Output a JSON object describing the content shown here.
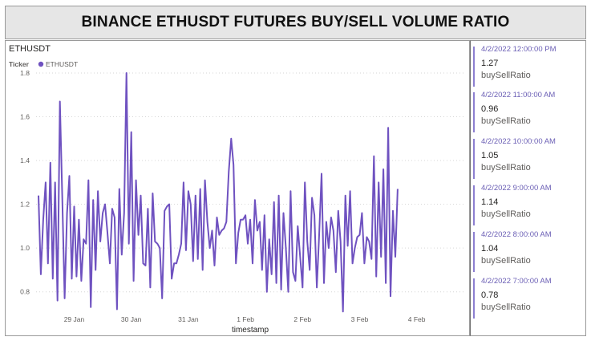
{
  "title": "BINANCE ETHUSDT FUTURES BUY/SELL VOLUME RATIO",
  "colors": {
    "series": "#6f52c0",
    "grid": "#d6d6d6",
    "card_accent": "#8c7fd0"
  },
  "chart_data": {
    "type": "line",
    "title": "ETHUSDT",
    "legend": {
      "title": "Ticker",
      "position": "top-left",
      "entries": [
        "ETHUSDT"
      ]
    },
    "xlabel": "timestamp",
    "ylabel": "",
    "xlim": [
      "2022-01-28 08:00",
      "2022-02-04 20:00"
    ],
    "ylim": [
      0.7,
      1.8
    ],
    "yticks": [
      "0.8",
      "1.0",
      "1.2",
      "1.4",
      "1.6",
      "1.8"
    ],
    "yticks_values": [
      0.8,
      1.0,
      1.2,
      1.4,
      1.6,
      1.8
    ],
    "xticks": [
      "29 Jan",
      "30 Jan",
      "31 Jan",
      "1 Feb",
      "2 Feb",
      "3 Feb",
      "4 Feb"
    ],
    "xticks_dates": [
      "2022-01-29",
      "2022-01-30",
      "2022-01-31",
      "2022-02-01",
      "2022-02-02",
      "2022-02-03",
      "2022-02-04"
    ],
    "grid": true,
    "series": [
      {
        "name": "ETHUSDT",
        "x_start": "2022-01-28 09:00",
        "interval_hours": 1,
        "values": [
          1.24,
          0.88,
          1.13,
          1.3,
          0.93,
          1.39,
          0.86,
          1.3,
          0.76,
          1.67,
          1.24,
          0.77,
          1.16,
          1.33,
          0.86,
          1.19,
          0.87,
          1.13,
          0.85,
          1.04,
          1.02,
          1.31,
          0.73,
          1.22,
          0.9,
          1.26,
          1.03,
          1.16,
          1.2,
          1.07,
          0.93,
          1.18,
          1.14,
          0.72,
          1.27,
          0.97,
          1.16,
          1.8,
          1.02,
          1.53,
          0.85,
          1.31,
          1.06,
          1.24,
          0.93,
          0.92,
          1.18,
          0.82,
          1.25,
          1.03,
          1.02,
          1.0,
          0.77,
          1.17,
          1.19,
          1.2,
          0.86,
          0.93,
          0.93,
          0.97,
          1.02,
          1.3,
          0.99,
          1.26,
          1.2,
          0.94,
          1.24,
          0.95,
          1.27,
          0.9,
          1.31,
          1.12,
          1.0,
          1.08,
          0.92,
          1.14,
          1.06,
          1.08,
          1.09,
          1.12,
          1.35,
          1.5,
          1.38,
          0.93,
          1.07,
          1.13,
          1.13,
          1.15,
          1.02,
          1.13,
          0.93,
          1.22,
          1.08,
          1.12,
          0.9,
          1.15,
          0.8,
          1.04,
          0.88,
          1.21,
          0.84,
          1.24,
          0.81,
          1.16,
          1.0,
          0.8,
          1.26,
          0.89,
          0.85,
          1.1,
          0.96,
          0.82,
          1.3,
          1.03,
          0.9,
          1.23,
          1.15,
          0.82,
          1.06,
          1.34,
          0.84,
          1.12,
          1.0,
          1.14,
          1.08,
          0.89,
          1.17,
          1.03,
          0.71,
          1.24,
          1.01,
          1.26,
          0.93,
          1.0,
          1.05,
          1.06,
          1.16,
          0.93,
          1.05,
          1.03,
          0.95,
          1.42,
          0.87,
          1.3,
          0.96,
          1.36,
          0.84,
          1.55,
          0.78,
          1.17,
          0.96,
          1.27
        ]
      }
    ]
  },
  "cards": [
    {
      "timestamp": "4/2/2022 12:00:00 PM",
      "value": "1.27",
      "metric": "buySellRatio"
    },
    {
      "timestamp": "4/2/2022 11:00:00 AM",
      "value": "0.96",
      "metric": "buySellRatio"
    },
    {
      "timestamp": "4/2/2022 10:00:00 AM",
      "value": "1.05",
      "metric": "buySellRatio"
    },
    {
      "timestamp": "4/2/2022 9:00:00 AM",
      "value": "1.14",
      "metric": "buySellRatio"
    },
    {
      "timestamp": "4/2/2022 8:00:00 AM",
      "value": "1.04",
      "metric": "buySellRatio"
    },
    {
      "timestamp": "4/2/2022 7:00:00 AM",
      "value": "0.78",
      "metric": "buySellRatio"
    }
  ]
}
